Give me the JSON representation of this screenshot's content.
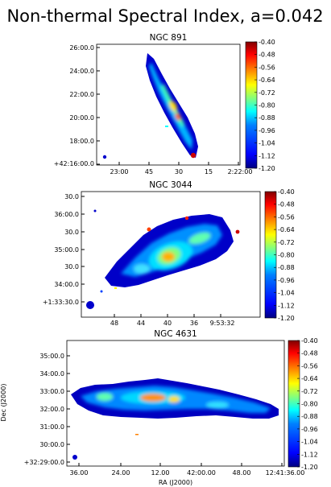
{
  "title": "Non-thermal Spectral Index, a=0.042",
  "colormap": {
    "stops": [
      "#000080",
      "#0000ff",
      "#0080ff",
      "#00ffff",
      "#80ff80",
      "#ffff00",
      "#ff8000",
      "#ff0000",
      "#800000"
    ],
    "range": [
      -1.2,
      -0.4
    ]
  },
  "chart_data": [
    {
      "type": "heatmap",
      "title": "NGC 891",
      "xlabel": "",
      "ylabel": "",
      "xticks": [
        "23:00",
        "45",
        "30",
        "15",
        "2:22:00"
      ],
      "yticks": [
        "26:00.0",
        "24:00.0",
        "22:00.0",
        "20:00.0",
        "18:00.0",
        "+42:16:00.0"
      ],
      "colorbar_ticks": [
        "-0.40",
        "-0.48",
        "-0.56",
        "-0.64",
        "-0.72",
        "-0.80",
        "-0.88",
        "-0.96",
        "-1.04",
        "-1.12",
        "-1.20"
      ],
      "colorbar_range": [
        -1.2,
        -0.4
      ]
    },
    {
      "type": "heatmap",
      "title": "NGC 3044",
      "xlabel": "",
      "ylabel": "",
      "xticks": [
        "48",
        "44",
        "40",
        "36",
        "9:53:32"
      ],
      "yticks": [
        "30.0",
        "36:00.0",
        "30.0",
        "35:00.0",
        "30.0",
        "34:00.0",
        "+1:33:30.0"
      ],
      "colorbar_ticks": [
        "-0.40",
        "-0.48",
        "-0.56",
        "-0.64",
        "-0.72",
        "-0.80",
        "-0.88",
        "-0.96",
        "-1.04",
        "-1.12",
        "-1.20"
      ],
      "colorbar_range": [
        -1.2,
        -0.4
      ]
    },
    {
      "type": "heatmap",
      "title": "NGC 4631",
      "xlabel": "RA (J2000)",
      "ylabel": "Dec (J2000)",
      "xticks": [
        "36.00",
        "24.00",
        "12.00",
        "42:00.00",
        "48.00",
        "12:41:36.00"
      ],
      "yticks": [
        "35:00.0",
        "34:00.0",
        "33:00.0",
        "32:00.0",
        "31:00.0",
        "30:00.0",
        "+32:29:00.0"
      ],
      "colorbar_ticks": [
        "-0.40",
        "-0.48",
        "-0.56",
        "-0.64",
        "-0.72",
        "-0.80",
        "-0.88",
        "-0.96",
        "-1.04",
        "-1.12",
        "-1.20"
      ],
      "colorbar_range": [
        -1.2,
        -0.4
      ]
    }
  ]
}
